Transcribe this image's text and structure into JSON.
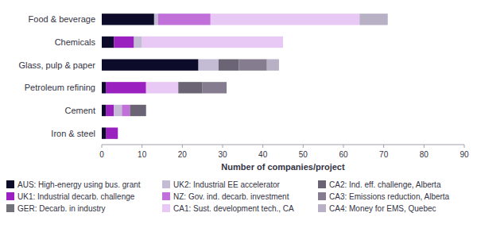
{
  "chart_data": {
    "type": "bar",
    "orientation": "horizontal",
    "stacked": true,
    "grid": false,
    "legend": "bottom",
    "xlabel": "Number of companies/project",
    "xlim": [
      0,
      90
    ],
    "xticks": [
      0,
      10,
      20,
      30,
      40,
      50,
      60,
      70,
      80,
      90
    ],
    "categories": [
      "Food & beverage",
      "Chemicals",
      "Glass, pulp & paper",
      "Petroleum refining",
      "Cement",
      "Iron & steel"
    ],
    "series": [
      {
        "name": "AUS: High-energy using bus. grant",
        "color": "#0c0c2a",
        "values": [
          13,
          3,
          24,
          1,
          1,
          1
        ]
      },
      {
        "name": "UK1: Industrial decarb. challenge",
        "color": "#9b20c0",
        "values": [
          0,
          5,
          0,
          10,
          2,
          3
        ]
      },
      {
        "name": "GER: Decarb. in industry",
        "color": "#72727a",
        "values": [
          0,
          0,
          0,
          0,
          0,
          0
        ]
      },
      {
        "name": "UK2: Industrial EE accelerator",
        "color": "#c4bcd4",
        "values": [
          1,
          2,
          5,
          0,
          2,
          0
        ]
      },
      {
        "name": "NZ: Gov. ind. decarb. investment",
        "color": "#c070d8",
        "values": [
          13,
          0,
          0,
          0,
          2,
          0
        ]
      },
      {
        "name": "CA1: Sust. development tech., CA",
        "color": "#e8c8f4",
        "values": [
          37,
          35,
          0,
          8,
          0,
          0
        ]
      },
      {
        "name": "CA2: Ind. eff. challenge, Alberta",
        "color": "#6a6475",
        "values": [
          0,
          0,
          5,
          6,
          4,
          0
        ]
      },
      {
        "name": "CA3: Emissions reduction, Alberta",
        "color": "#857d8f",
        "values": [
          0,
          0,
          7,
          6,
          0,
          0
        ]
      },
      {
        "name": "CA4: Money for EMS, Quebec",
        "color": "#b8b0c4",
        "values": [
          7,
          0,
          3,
          0,
          0,
          0
        ]
      }
    ]
  }
}
